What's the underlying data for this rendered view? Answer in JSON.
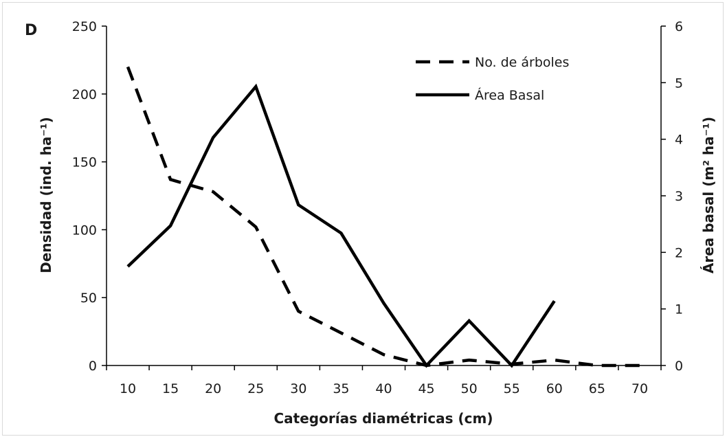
{
  "chart_data": {
    "type": "line",
    "panel_label": "D",
    "xlabel": "Categorías diamétricas (cm)",
    "ylabel_left": "Densidad (ind. ha⁻¹)",
    "ylabel_right": "Área basal (m² ha⁻¹)",
    "categories": [
      "10",
      "15",
      "20",
      "25",
      "30",
      "35",
      "40",
      "45",
      "50",
      "55",
      "60",
      "65",
      "70"
    ],
    "ylim_left": [
      0,
      250
    ],
    "yticks_left": [
      "0",
      "50",
      "100",
      "150",
      "200",
      "250"
    ],
    "ylim_right": [
      0,
      6
    ],
    "yticks_right": [
      "0",
      "1",
      "2",
      "3",
      "4",
      "5",
      "6"
    ],
    "grid": false,
    "legend_position": "top-right",
    "series": [
      {
        "name": "No. de árboles",
        "axis": "left",
        "style": "dashed",
        "values": [
          220,
          137,
          128,
          102,
          40,
          24,
          8,
          0,
          4,
          1,
          4,
          0,
          0
        ]
      },
      {
        "name": "Área Basal",
        "axis": "right",
        "style": "solid",
        "values": [
          1.75,
          2.47,
          4.03,
          4.93,
          2.84,
          2.34,
          1.1,
          0,
          0.79,
          0,
          1.14,
          null,
          null
        ]
      }
    ],
    "colors": {
      "line": "#000000",
      "axis": "#000000"
    }
  }
}
